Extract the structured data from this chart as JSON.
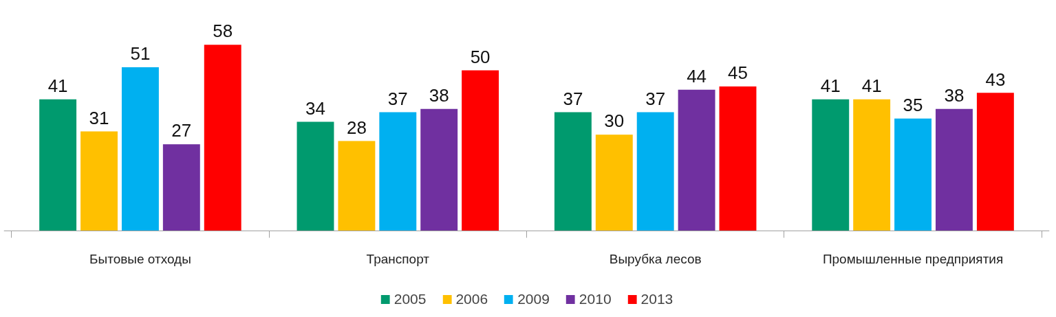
{
  "chart_data": {
    "type": "bar",
    "categories": [
      "Бытовые отходы",
      "Транспорт",
      "Вырубка лесов",
      "Промышленные предприятия"
    ],
    "series": [
      {
        "name": "2005",
        "color": "#009a6e",
        "values": [
          41,
          34,
          37,
          41
        ]
      },
      {
        "name": "2006",
        "color": "#ffc000",
        "values": [
          31,
          28,
          30,
          41
        ]
      },
      {
        "name": "2009",
        "color": "#00b0f0",
        "values": [
          51,
          37,
          37,
          35
        ]
      },
      {
        "name": "2010",
        "color": "#7030a0",
        "values": [
          27,
          38,
          44,
          38
        ]
      },
      {
        "name": "2013",
        "color": "#ff0000",
        "values": [
          58,
          50,
          45,
          43
        ]
      }
    ],
    "data_labels": true,
    "legend": "bottom"
  }
}
